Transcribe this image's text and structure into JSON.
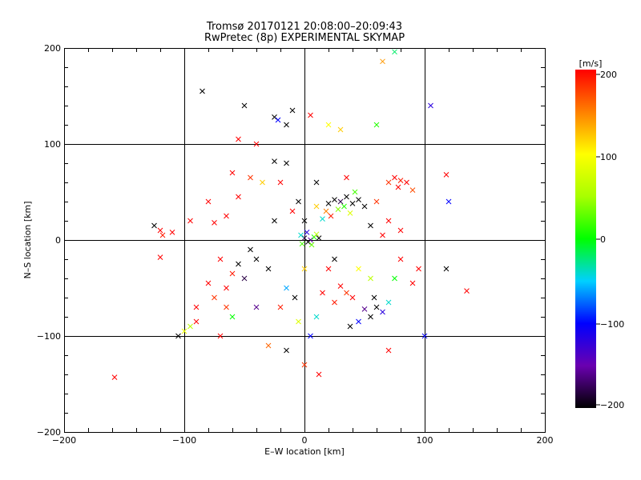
{
  "chart_data": {
    "type": "scatter",
    "title": "Tromsø 20170121 20:08:00–20:09:43",
    "subtitle": "RwPretec (8p) EXPERIMENTAL SKYMAP",
    "xlabel": "E–W location [km]",
    "ylabel": "N–S location [km]",
    "xlim": [
      -200,
      200
    ],
    "ylim": [
      -200,
      200
    ],
    "xticks": [
      "−200",
      "−100",
      "0",
      "100",
      "200"
    ],
    "yticks": [
      "−200",
      "−100",
      "0",
      "100",
      "200"
    ],
    "grid": true,
    "colorbar": {
      "title": "[m/s]",
      "range": [
        -200,
        200
      ],
      "ticks": [
        "200",
        "100",
        "0",
        "−100",
        "−200"
      ]
    },
    "points": [
      {
        "x": 0,
        "y": 2,
        "v": -180,
        "m": "x"
      },
      {
        "x": 5,
        "y": 0,
        "v": -150,
        "m": "x"
      },
      {
        "x": -3,
        "y": 5,
        "v": -40,
        "m": "x"
      },
      {
        "x": 8,
        "y": 3,
        "v": 10,
        "m": "x"
      },
      {
        "x": 3,
        "y": -2,
        "v": -200,
        "m": "x"
      },
      {
        "x": 10,
        "y": 6,
        "v": 60,
        "m": "x"
      },
      {
        "x": -2,
        "y": -4,
        "v": 20,
        "m": "x"
      },
      {
        "x": 2,
        "y": 8,
        "v": -120,
        "m": "x"
      },
      {
        "x": 12,
        "y": 2,
        "v": -200,
        "m": "x"
      },
      {
        "x": 6,
        "y": -5,
        "v": 30,
        "m": "x"
      },
      {
        "x": 20,
        "y": 38,
        "v": -200,
        "m": "x"
      },
      {
        "x": 25,
        "y": 42,
        "v": -200,
        "m": "x"
      },
      {
        "x": 30,
        "y": 40,
        "v": -180,
        "m": "x"
      },
      {
        "x": 35,
        "y": 45,
        "v": -200,
        "m": "x"
      },
      {
        "x": 40,
        "y": 38,
        "v": -200,
        "m": "x"
      },
      {
        "x": 45,
        "y": 42,
        "v": -200,
        "m": "x"
      },
      {
        "x": 28,
        "y": 32,
        "v": 40,
        "m": "x"
      },
      {
        "x": 33,
        "y": 35,
        "v": 10,
        "m": "x"
      },
      {
        "x": 18,
        "y": 30,
        "v": 150,
        "m": "x"
      },
      {
        "x": 22,
        "y": 25,
        "v": 190,
        "m": "x"
      },
      {
        "x": 15,
        "y": 22,
        "v": -40,
        "m": "x"
      },
      {
        "x": 38,
        "y": 28,
        "v": 80,
        "m": "x"
      },
      {
        "x": 10,
        "y": 35,
        "v": 120,
        "m": "x"
      },
      {
        "x": 50,
        "y": 35,
        "v": -200,
        "m": "x"
      },
      {
        "x": 42,
        "y": 50,
        "v": 20,
        "m": "x"
      },
      {
        "x": 75,
        "y": 65,
        "v": 200,
        "m": "x"
      },
      {
        "x": 80,
        "y": 62,
        "v": 190,
        "m": "x"
      },
      {
        "x": 85,
        "y": 60,
        "v": 200,
        "m": "x"
      },
      {
        "x": 70,
        "y": 60,
        "v": 180,
        "m": "x"
      },
      {
        "x": 78,
        "y": 55,
        "v": 200,
        "m": "x"
      },
      {
        "x": 90,
        "y": 52,
        "v": 170,
        "m": "x"
      },
      {
        "x": 60,
        "y": -70,
        "v": -200,
        "m": "x"
      },
      {
        "x": 65,
        "y": -75,
        "v": -120,
        "m": "x"
      },
      {
        "x": 55,
        "y": -80,
        "v": -200,
        "m": "x"
      },
      {
        "x": 70,
        "y": -65,
        "v": -40,
        "m": "x"
      },
      {
        "x": 50,
        "y": -72,
        "v": -160,
        "m": "x"
      },
      {
        "x": 45,
        "y": -85,
        "v": -100,
        "m": "x"
      },
      {
        "x": 40,
        "y": -60,
        "v": 200,
        "m": "x"
      },
      {
        "x": 35,
        "y": -55,
        "v": 180,
        "m": "x"
      },
      {
        "x": 30,
        "y": -48,
        "v": 200,
        "m": "x"
      },
      {
        "x": 25,
        "y": -65,
        "v": 190,
        "m": "x"
      },
      {
        "x": 38,
        "y": -90,
        "v": -200,
        "m": "x"
      },
      {
        "x": 58,
        "y": -60,
        "v": -200,
        "m": "x"
      },
      {
        "x": -40,
        "y": -20,
        "v": -200,
        "m": "x"
      },
      {
        "x": -55,
        "y": -25,
        "v": -200,
        "m": "x"
      },
      {
        "x": -60,
        "y": -35,
        "v": 190,
        "m": "x"
      },
      {
        "x": -70,
        "y": -20,
        "v": 200,
        "m": "x"
      },
      {
        "x": -50,
        "y": -40,
        "v": -180,
        "m": "x"
      },
      {
        "x": -30,
        "y": -30,
        "v": -200,
        "m": "x"
      },
      {
        "x": -45,
        "y": -10,
        "v": -200,
        "m": "x"
      },
      {
        "x": -65,
        "y": -50,
        "v": 200,
        "m": "x"
      },
      {
        "x": -80,
        "y": -45,
        "v": 200,
        "m": "x"
      },
      {
        "x": -75,
        "y": -60,
        "v": 180,
        "m": "x"
      },
      {
        "x": -90,
        "y": -70,
        "v": 200,
        "m": "x"
      },
      {
        "x": -95,
        "y": -90,
        "v": 60,
        "m": "x"
      },
      {
        "x": -100,
        "y": -95,
        "v": 90,
        "m": "x"
      },
      {
        "x": -90,
        "y": -85,
        "v": 200,
        "m": "x"
      },
      {
        "x": -105,
        "y": -100,
        "v": -200,
        "m": "x"
      },
      {
        "x": -125,
        "y": 15,
        "v": -200,
        "m": "x"
      },
      {
        "x": -120,
        "y": 10,
        "v": 200,
        "m": "x"
      },
      {
        "x": -118,
        "y": 5,
        "v": 190,
        "m": "x"
      },
      {
        "x": -110,
        "y": 8,
        "v": 200,
        "m": "x"
      },
      {
        "x": -158,
        "y": -143,
        "v": 200,
        "m": "x"
      },
      {
        "x": -120,
        "y": -18,
        "v": 200,
        "m": "x"
      },
      {
        "x": -55,
        "y": 105,
        "v": 200,
        "m": "x"
      },
      {
        "x": -40,
        "y": 100,
        "v": 200,
        "m": "x"
      },
      {
        "x": -10,
        "y": 135,
        "v": -200,
        "m": "x"
      },
      {
        "x": -25,
        "y": 128,
        "v": -200,
        "m": "x"
      },
      {
        "x": -50,
        "y": 140,
        "v": -200,
        "m": "x"
      },
      {
        "x": -22,
        "y": 125,
        "v": -100,
        "m": "x"
      },
      {
        "x": -15,
        "y": 120,
        "v": -200,
        "m": "x"
      },
      {
        "x": 5,
        "y": 130,
        "v": 200,
        "m": "x"
      },
      {
        "x": 20,
        "y": 120,
        "v": 100,
        "m": "x"
      },
      {
        "x": 30,
        "y": 115,
        "v": 120,
        "m": "x"
      },
      {
        "x": 60,
        "y": 120,
        "v": 10,
        "m": "x"
      },
      {
        "x": 65,
        "y": 186,
        "v": 140,
        "m": "x"
      },
      {
        "x": 75,
        "y": 196,
        "v": -20,
        "m": "x"
      },
      {
        "x": 105,
        "y": 140,
        "v": -120,
        "m": "x"
      },
      {
        "x": 120,
        "y": 40,
        "v": -100,
        "m": "x"
      },
      {
        "x": 118,
        "y": 68,
        "v": 200,
        "m": "x"
      },
      {
        "x": 135,
        "y": -53,
        "v": 200,
        "m": "x"
      },
      {
        "x": 118,
        "y": -30,
        "v": -200,
        "m": "x"
      },
      {
        "x": 100,
        "y": -100,
        "v": -100,
        "m": "x"
      },
      {
        "x": 70,
        "y": -115,
        "v": 200,
        "m": "x"
      },
      {
        "x": 12,
        "y": -140,
        "v": 200,
        "m": "x"
      },
      {
        "x": 0,
        "y": -130,
        "v": 180,
        "m": "x"
      },
      {
        "x": -15,
        "y": -115,
        "v": -200,
        "m": "x"
      },
      {
        "x": -30,
        "y": -110,
        "v": 160,
        "m": "x"
      },
      {
        "x": 5,
        "y": -100,
        "v": -100,
        "m": "x"
      },
      {
        "x": -8,
        "y": -60,
        "v": -200,
        "m": "x"
      },
      {
        "x": 15,
        "y": -55,
        "v": 200,
        "m": "x"
      },
      {
        "x": -15,
        "y": -50,
        "v": -60,
        "m": "x"
      },
      {
        "x": 10,
        "y": -80,
        "v": -40,
        "m": "x"
      },
      {
        "x": -20,
        "y": 60,
        "v": 200,
        "m": "x"
      },
      {
        "x": -35,
        "y": 60,
        "v": 120,
        "m": "x"
      },
      {
        "x": -60,
        "y": 70,
        "v": 200,
        "m": "x"
      },
      {
        "x": -45,
        "y": 65,
        "v": 180,
        "m": "x"
      },
      {
        "x": -15,
        "y": 80,
        "v": -200,
        "m": "x"
      },
      {
        "x": -25,
        "y": 82,
        "v": -200,
        "m": "x"
      },
      {
        "x": -5,
        "y": 40,
        "v": -200,
        "m": "x"
      },
      {
        "x": 0,
        "y": 20,
        "v": -200,
        "m": "x"
      },
      {
        "x": -10,
        "y": 30,
        "v": 200,
        "m": "x"
      },
      {
        "x": -25,
        "y": 20,
        "v": -200,
        "m": "x"
      },
      {
        "x": -65,
        "y": 25,
        "v": 200,
        "m": "x"
      },
      {
        "x": -75,
        "y": 18,
        "v": 200,
        "m": "x"
      },
      {
        "x": -95,
        "y": 20,
        "v": 200,
        "m": "x"
      },
      {
        "x": -80,
        "y": 40,
        "v": 200,
        "m": "x"
      },
      {
        "x": -55,
        "y": 45,
        "v": 200,
        "m": "x"
      },
      {
        "x": 20,
        "y": -30,
        "v": 200,
        "m": "x"
      },
      {
        "x": 25,
        "y": -20,
        "v": -200,
        "m": "x"
      },
      {
        "x": 0,
        "y": -30,
        "v": 120,
        "m": "x"
      },
      {
        "x": -20,
        "y": -70,
        "v": 190,
        "m": "x"
      },
      {
        "x": -5,
        "y": -85,
        "v": 80,
        "m": "x"
      },
      {
        "x": -60,
        "y": -80,
        "v": 0,
        "m": "x"
      },
      {
        "x": -65,
        "y": -70,
        "v": 180,
        "m": "x"
      },
      {
        "x": -40,
        "y": -70,
        "v": -160,
        "m": "x"
      },
      {
        "x": -70,
        "y": -100,
        "v": 200,
        "m": "x"
      },
      {
        "x": -85,
        "y": 155,
        "v": -200,
        "m": "x"
      },
      {
        "x": 90,
        "y": -45,
        "v": 200,
        "m": "x"
      },
      {
        "x": 95,
        "y": -30,
        "v": 200,
        "m": "x"
      },
      {
        "x": 80,
        "y": -20,
        "v": 200,
        "m": "x"
      },
      {
        "x": 75,
        "y": -40,
        "v": 0,
        "m": "x"
      },
      {
        "x": 55,
        "y": -40,
        "v": 60,
        "m": "x"
      },
      {
        "x": 45,
        "y": -30,
        "v": 100,
        "m": "x"
      },
      {
        "x": 10,
        "y": 60,
        "v": -200,
        "m": "x"
      },
      {
        "x": 35,
        "y": 65,
        "v": 200,
        "m": "x"
      },
      {
        "x": 60,
        "y": 40,
        "v": 180,
        "m": "x"
      },
      {
        "x": 70,
        "y": 20,
        "v": 200,
        "m": "x"
      },
      {
        "x": 80,
        "y": 10,
        "v": 200,
        "m": "x"
      },
      {
        "x": 55,
        "y": 15,
        "v": -200,
        "m": "x"
      },
      {
        "x": 65,
        "y": 5,
        "v": 200,
        "m": "x"
      }
    ]
  }
}
